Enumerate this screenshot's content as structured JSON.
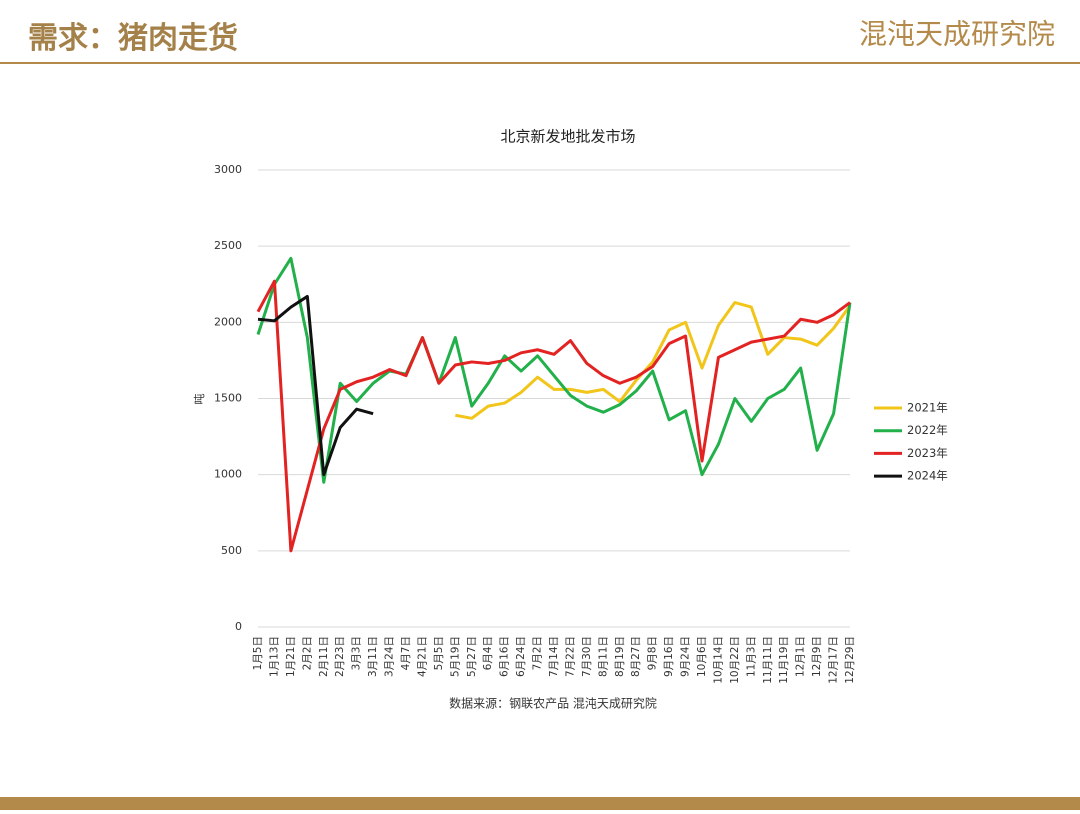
{
  "header": {
    "title": "需求：猪肉走货",
    "logo": "混沌天成研究院"
  },
  "chart_data": {
    "type": "line",
    "title": "北京新发地批发市场",
    "y_label": "吨",
    "source": "数据来源：钢联农产品 混沌天成研究院",
    "categories": [
      "1月5日",
      "1月13日",
      "1月21日",
      "2月2日",
      "2月11日",
      "2月23日",
      "3月3日",
      "3月11日",
      "3月24日",
      "4月7日",
      "4月21日",
      "5月5日",
      "5月19日",
      "5月27日",
      "6月4日",
      "6月16日",
      "6月24日",
      "7月2日",
      "7月14日",
      "7月22日",
      "7月30日",
      "8月11日",
      "8月19日",
      "8月27日",
      "9月8日",
      "9月16日",
      "9月24日",
      "10月6日",
      "10月14日",
      "10月22日",
      "11月3日",
      "11月11日",
      "11月19日",
      "12月1日",
      "12月9日",
      "12月17日",
      "12月29日"
    ],
    "series": [
      {
        "name": "2021年",
        "color": "#f2c51a",
        "values": [
          null,
          null,
          null,
          null,
          null,
          null,
          null,
          null,
          null,
          null,
          null,
          null,
          1390,
          1370,
          1450,
          1470,
          1540,
          1640,
          1560,
          1560,
          1540,
          1560,
          1480,
          1620,
          1740,
          1950,
          2000,
          1700,
          1980,
          2130,
          2100,
          1790,
          1900,
          1890,
          1850,
          1960,
          2110
        ]
      },
      {
        "name": "2022年",
        "color": "#22b04b",
        "values": [
          1920,
          2250,
          2420,
          1900,
          950,
          1600,
          1480,
          1600,
          1680,
          1660,
          1900,
          1600,
          1900,
          1450,
          1600,
          1780,
          1680,
          1780,
          1650,
          1520,
          1450,
          1410,
          1460,
          1550,
          1680,
          1360,
          1420,
          1000,
          1200,
          1500,
          1350,
          1500,
          1560,
          1700,
          1160,
          1400,
          2130
        ]
      },
      {
        "name": "2023年",
        "color": "#e32222",
        "values": [
          2070,
          2270,
          500,
          900,
          1300,
          1560,
          1610,
          1640,
          1690,
          1650,
          1900,
          1600,
          1720,
          1740,
          1730,
          1750,
          1800,
          1820,
          1790,
          1880,
          1730,
          1650,
          1600,
          1640,
          1710,
          1860,
          1910,
          1090,
          1770,
          1820,
          1870,
          1890,
          1910,
          2020,
          2000,
          2050,
          2130
        ]
      },
      {
        "name": "2024年",
        "color": "#111111",
        "values": [
          2020,
          2010,
          2100,
          2170,
          1000,
          1310,
          1430,
          1400,
          null,
          null,
          null,
          null,
          null,
          null,
          null,
          null,
          null,
          null,
          null,
          null,
          null,
          null,
          null,
          null,
          null,
          null,
          null,
          null,
          null,
          null,
          null,
          null,
          null,
          null,
          null,
          null,
          null
        ]
      }
    ],
    "ylim": [
      0,
      3000
    ],
    "yticks": [
      0,
      500,
      1000,
      1500,
      2000,
      2500,
      3000
    ],
    "grid": true,
    "legend": "right"
  }
}
